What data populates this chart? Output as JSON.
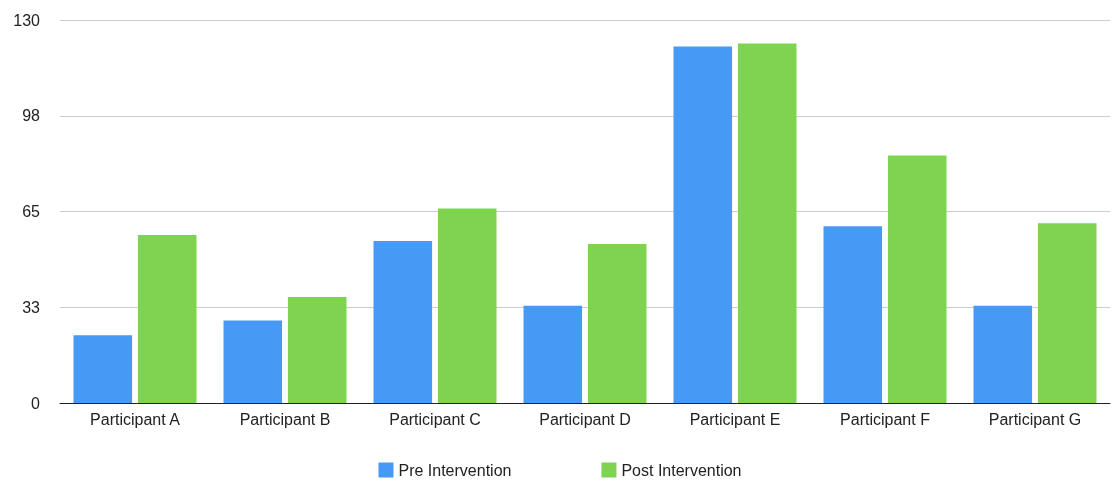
{
  "chart_data": {
    "type": "bar",
    "categories": [
      "Participant A",
      "Participant B",
      "Participant C",
      "Participant D",
      "Participant E",
      "Participant F",
      "Participant G"
    ],
    "series": [
      {
        "name": "Pre Intervention",
        "color": "#4699f4",
        "values": [
          23,
          28,
          55,
          33,
          121,
          60,
          33
        ]
      },
      {
        "name": "Post Intervention",
        "color": "#7ed350",
        "values": [
          57,
          36,
          66,
          54,
          122,
          84,
          61
        ]
      }
    ],
    "ylim": [
      0,
      130
    ],
    "yticks": [
      0,
      {
        "value": 32.5,
        "label": "33"
      },
      65,
      {
        "value": 97.5,
        "label": "98"
      },
      130
    ],
    "grid": "y",
    "legend": "bottom"
  }
}
